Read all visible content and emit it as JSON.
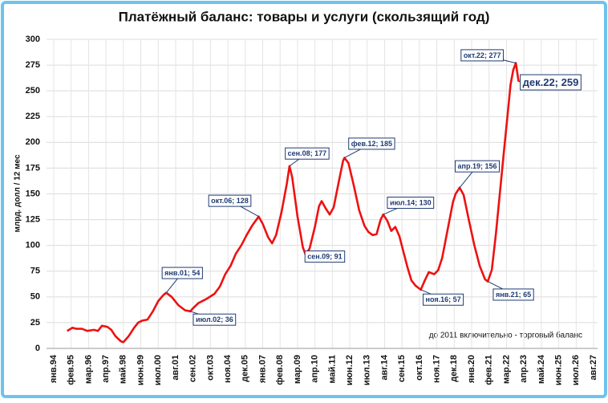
{
  "chart_data": {
    "type": "line",
    "title": "Платёжный баланс: товары и услуги (скользящий год)",
    "y_label": "млрд. долл / 12 мес",
    "note": "до 2011 включительно - торговый баланс",
    "ylim": [
      0,
      300
    ],
    "yticks": [
      0,
      25,
      50,
      75,
      100,
      125,
      150,
      175,
      200,
      225,
      250,
      275,
      300
    ],
    "grid": true,
    "xticks": [
      "янв.94",
      "фев.95",
      "мар.96",
      "апр.97",
      "май.98",
      "июн.99",
      "июл.00",
      "авг.01",
      "сен.02",
      "окт.03",
      "ноя.04",
      "дек.05",
      "янв.07",
      "фев.08",
      "мар.09",
      "апр.10",
      "май.11",
      "июн.12",
      "июл.13",
      "авг.14",
      "сен.15",
      "окт.16",
      "ноя.17",
      "дек.18",
      "янв.20",
      "фев.21",
      "мар.22",
      "апр.23",
      "май.24",
      "июн.25",
      "июл.26",
      "авг.27"
    ],
    "series": [
      {
        "color": "#ee1111",
        "x": [
          "ноя.94",
          "мар.95",
          "июн.95",
          "окт.95",
          "фев.96",
          "июл.96",
          "окт.96",
          "янв.97",
          "май.97",
          "авг.97",
          "ноя.97",
          "мар.98",
          "май.98",
          "сен.98",
          "янв.99",
          "апр.99",
          "июл.99",
          "ноя.99",
          "мар.00",
          "июл.00",
          "ноя.00",
          "янв.01",
          "май.01",
          "окт.01",
          "мар.02",
          "июл.02",
          "сен.02",
          "янв.03",
          "июл.03",
          "янв.04",
          "май.04",
          "сен.04",
          "янв.05",
          "май.05",
          "сен.05",
          "янв.06",
          "май.06",
          "окт.06",
          "янв.07",
          "май.07",
          "авг.07",
          "ноя.07",
          "мар.08",
          "июл.08",
          "сен.08",
          "ноя.08",
          "мар.09",
          "июл.09",
          "сен.09",
          "дек.09",
          "апр.10",
          "июл.10",
          "сен.10",
          "дек.10",
          "мар.11",
          "июн.11",
          "окт.11",
          "янв.12",
          "фев.12",
          "май.12",
          "сен.12",
          "янв.13",
          "май.13",
          "авг.13",
          "ноя.13",
          "фев.14",
          "май.14",
          "июл.14",
          "окт.14",
          "янв.15",
          "апр.15",
          "июл.15",
          "окт.15",
          "янв.16",
          "апр.16",
          "июл.16",
          "ноя.16",
          "фев.17",
          "май.17",
          "сен.17",
          "дек.17",
          "мар.18",
          "июл.18",
          "ноя.18",
          "янв.19",
          "апр.19",
          "июл.19",
          "ноя.19",
          "мар.20",
          "июл.20",
          "ноя.20",
          "янв.21",
          "апр.21",
          "июл.21",
          "окт.21",
          "янв.22",
          "апр.22",
          "июн.22",
          "авг.22",
          "окт.22",
          "дек.22"
        ],
        "values": [
          17,
          20,
          19,
          19,
          17,
          18,
          17,
          22,
          21,
          18,
          12,
          7,
          6,
          12,
          20,
          25,
          27,
          28,
          36,
          46,
          52,
          54,
          50,
          42,
          37,
          36,
          39,
          44,
          48,
          53,
          60,
          72,
          80,
          92,
          100,
          110,
          119,
          128,
          121,
          108,
          102,
          110,
          132,
          160,
          177,
          166,
          128,
          98,
          91,
          97,
          118,
          138,
          143,
          136,
          130,
          137,
          163,
          182,
          185,
          180,
          158,
          134,
          119,
          113,
          110,
          111,
          125,
          130,
          124,
          114,
          118,
          109,
          94,
          79,
          66,
          61,
          57,
          66,
          74,
          72,
          76,
          88,
          115,
          142,
          150,
          156,
          149,
          124,
          100,
          80,
          67,
          65,
          76,
          110,
          150,
          190,
          229,
          256,
          270,
          277,
          259
        ]
      }
    ],
    "annotations": [
      {
        "x": "янв.01",
        "value": 54,
        "label": "янв.01; 54"
      },
      {
        "x": "июл.02",
        "value": 36,
        "label": "июл.02; 36"
      },
      {
        "x": "окт.06",
        "value": 128,
        "label": "окт.06; 128"
      },
      {
        "x": "сен.08",
        "value": 177,
        "label": "сен.08; 177"
      },
      {
        "x": "сен.09",
        "value": 91,
        "label": "сен.09; 91"
      },
      {
        "x": "фев.12",
        "value": 185,
        "label": "фев.12; 185"
      },
      {
        "x": "июл.14",
        "value": 130,
        "label": "июл.14; 130"
      },
      {
        "x": "ноя.16",
        "value": 57,
        "label": "ноя.16; 57"
      },
      {
        "x": "апр.19",
        "value": 156,
        "label": "апр.19; 156"
      },
      {
        "x": "янв.21",
        "value": 65,
        "label": "янв.21; 65"
      },
      {
        "x": "окт.22",
        "value": 277,
        "label": "окт.22; 277"
      },
      {
        "x": "дек.22",
        "value": 259,
        "label": "дек.22; 259"
      }
    ]
  }
}
